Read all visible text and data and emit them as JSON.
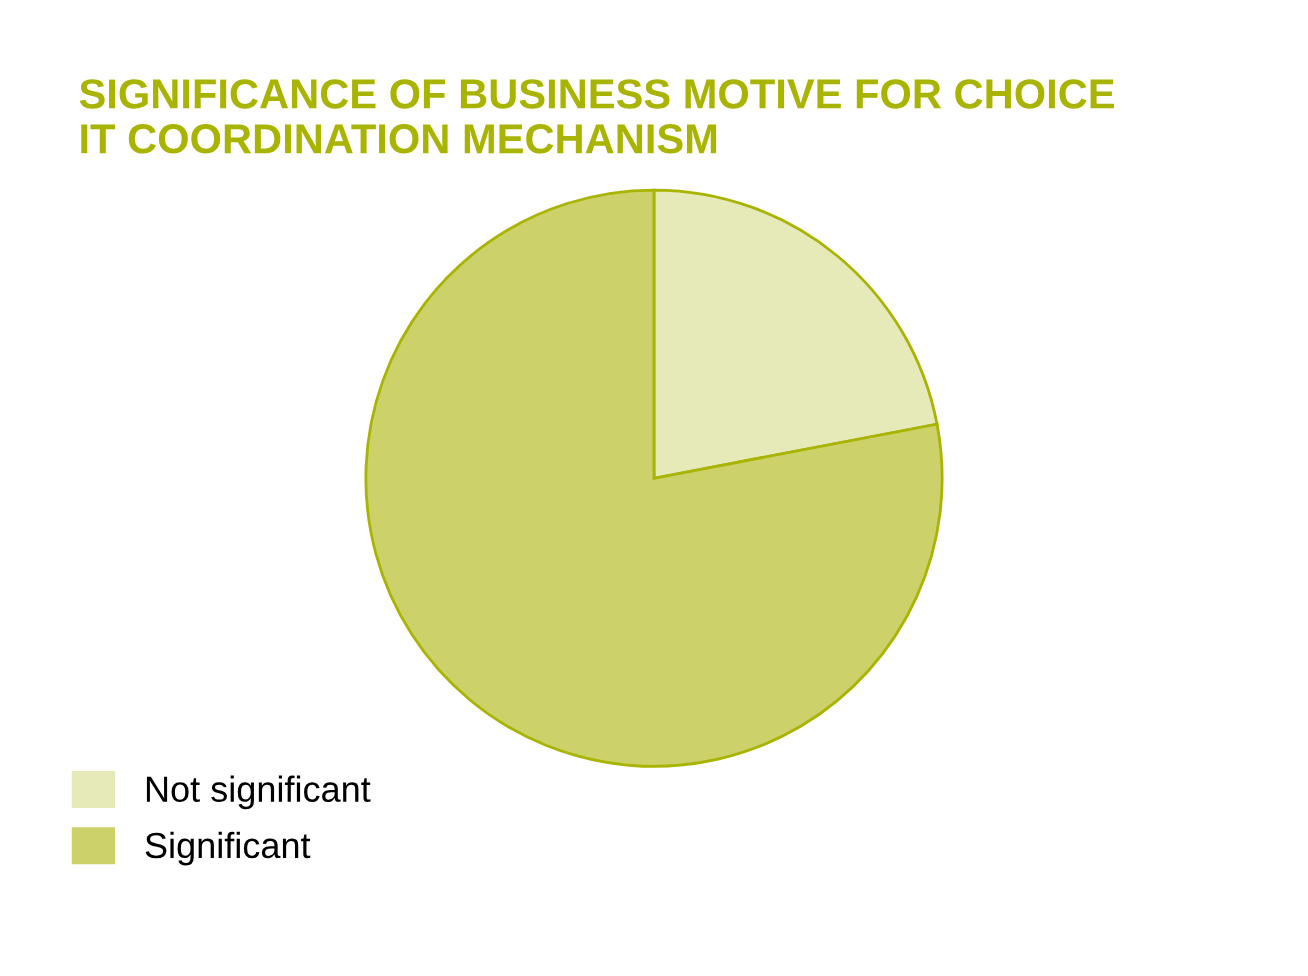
{
  "chart_data": {
    "type": "pie",
    "title": "SIGNIFICANCE OF BUSINESS MOTIVE FOR CHOICE\nIT COORDINATION MECHANISM",
    "categories": [
      "Not significant",
      "Significant"
    ],
    "values": [
      22,
      78
    ],
    "colors": [
      "#e6eab8",
      "#cdd16a"
    ],
    "legend": "bottom left"
  }
}
